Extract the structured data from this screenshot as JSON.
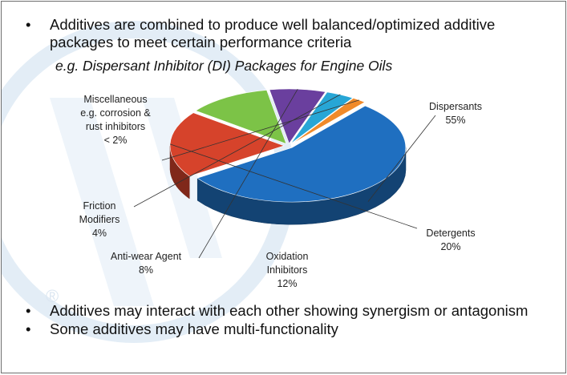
{
  "slide": {
    "bullets_top": [
      "Additives are combined to produce well balanced/optimized additive packages to meet certain performance criteria"
    ],
    "example_line": "e.g. Dispersant Inhibitor (DI) Packages for Engine Oils",
    "bullets_bottom": [
      "Additives may interact with each other showing synergism or antagonism",
      "Some additives may have multi-functionality"
    ],
    "bullet_glyph": "•",
    "watermark_mark": "®"
  },
  "chart_data": {
    "type": "pie",
    "style": "3d-exploded",
    "title": "",
    "slices": [
      {
        "name": "Dispersants",
        "value": 55,
        "label_lines": [
          "Dispersants",
          "55%"
        ],
        "color": "#1f6fc0"
      },
      {
        "name": "Detergents",
        "value": 20,
        "label_lines": [
          "Detergents",
          "20%"
        ],
        "color": "#d6432b"
      },
      {
        "name": "Oxidation Inhibitors",
        "value": 12,
        "label_lines": [
          "Oxidation",
          "Inhibitors",
          "12%"
        ],
        "color": "#7cc347"
      },
      {
        "name": "Anti-wear Agent",
        "value": 8,
        "label_lines": [
          "Anti-wear Agent",
          "8%"
        ],
        "color": "#6a3f9e"
      },
      {
        "name": "Friction Modifiers",
        "value": 4,
        "label_lines": [
          "Friction",
          "Modifiers",
          "4%"
        ],
        "color": "#27a6d6"
      },
      {
        "name": "Miscellaneous",
        "value": 2,
        "label_lines": [
          "Miscellaneous",
          "e.g. corrosion &",
          "rust inhibitors",
          "< 2%"
        ],
        "color": "#f08a2a"
      }
    ]
  }
}
